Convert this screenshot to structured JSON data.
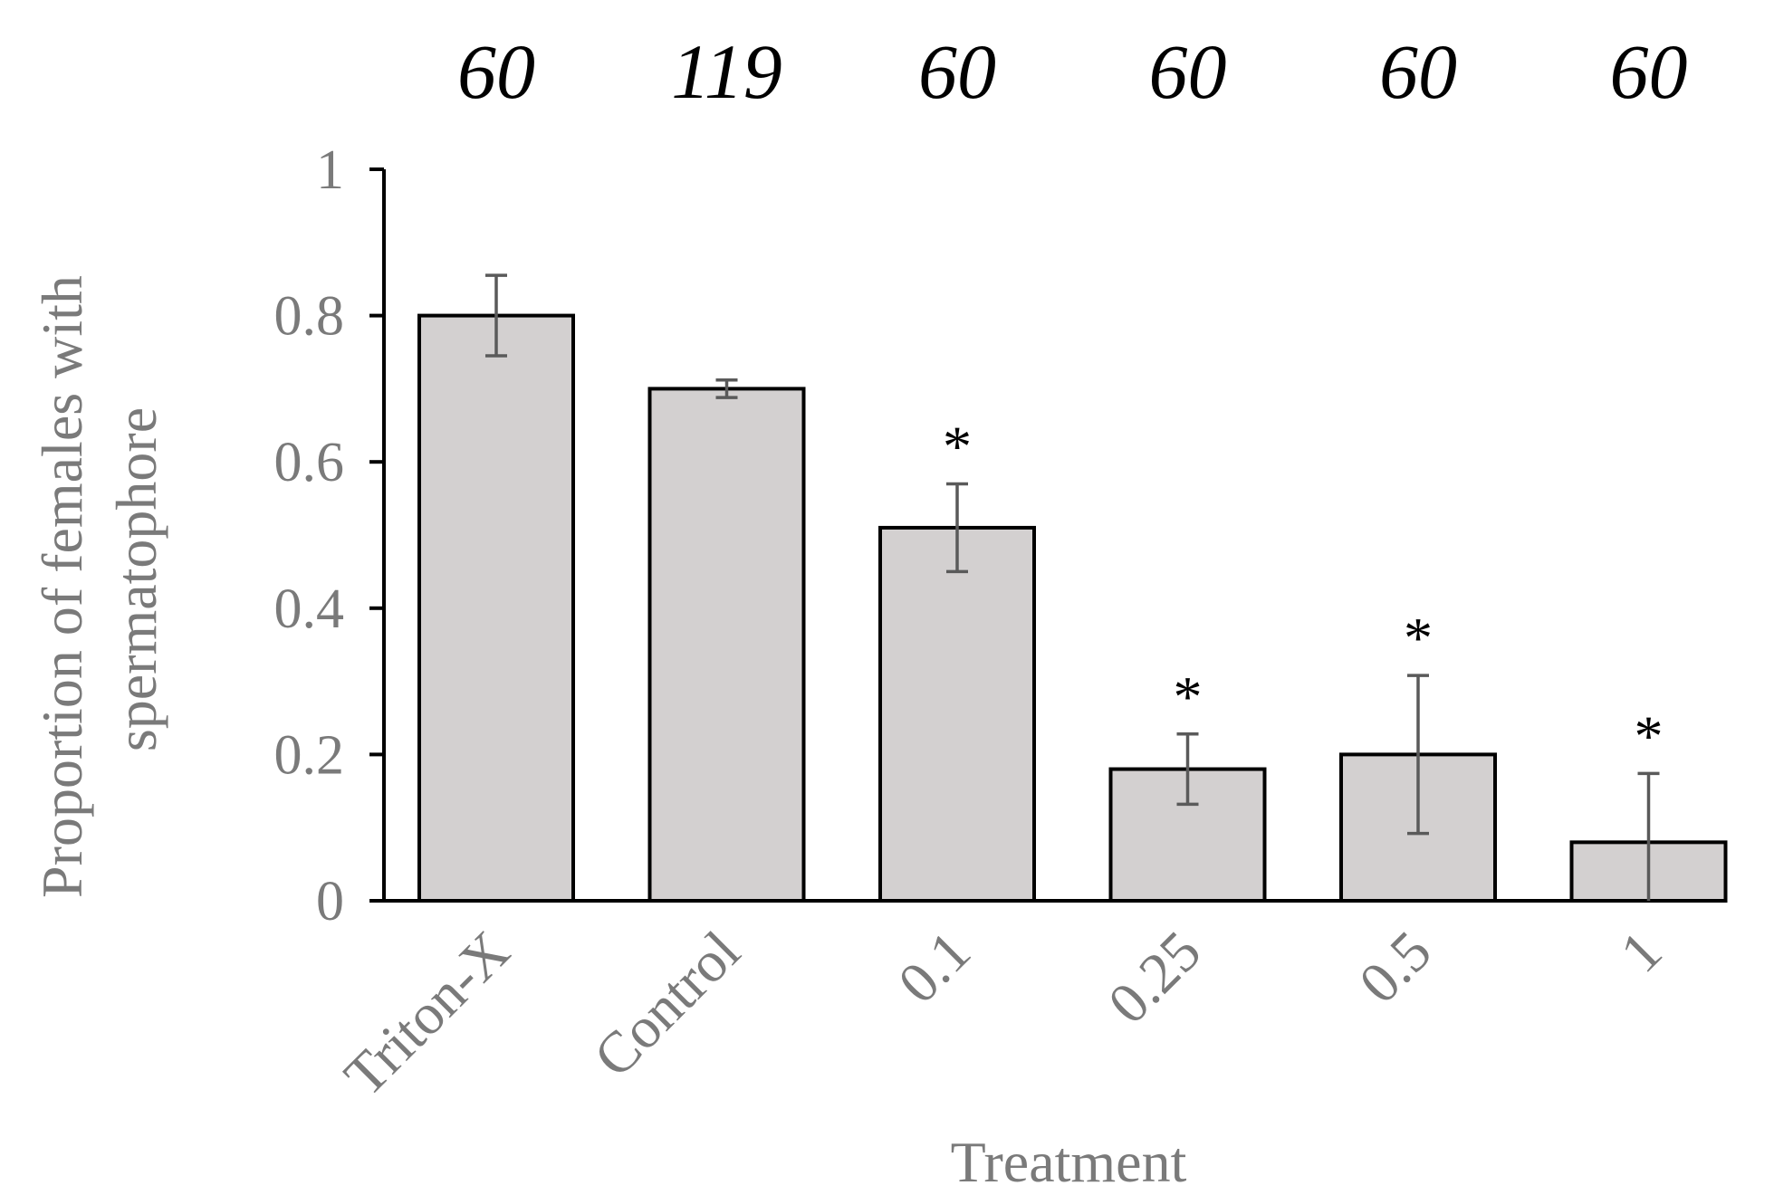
{
  "chart_data": {
    "type": "bar",
    "title": "",
    "xlabel": "Treatment",
    "ylabel_line1": "Proportion of females with",
    "ylabel_line2": "spermatophore",
    "categories": [
      "Triton-X",
      "Control",
      "0.1",
      "0.25",
      "0.5",
      "1"
    ],
    "values": [
      0.8,
      0.7,
      0.51,
      0.18,
      0.2,
      0.08
    ],
    "error": [
      0.055,
      0.012,
      0.06,
      0.048,
      0.108,
      0.094
    ],
    "significance": [
      "",
      "",
      "*",
      "*",
      "*",
      "*"
    ],
    "sample_sizes": [
      "60",
      "119",
      "60",
      "60",
      "60",
      "60"
    ],
    "ylim": [
      0,
      1
    ],
    "yticks": [
      0,
      0.2,
      0.4,
      0.6,
      0.8,
      1
    ],
    "ytick_labels": [
      "0",
      "0.2",
      "0.4",
      "0.6",
      "0.8",
      "1"
    ],
    "grid": false,
    "colors": {
      "bar_fill": "#d3d0d0",
      "bar_stroke": "#000000",
      "error_bar": "#5a5a5a",
      "axis": "#000000",
      "label_text": "#7a7a7a",
      "annotation_text": "#000000"
    }
  }
}
